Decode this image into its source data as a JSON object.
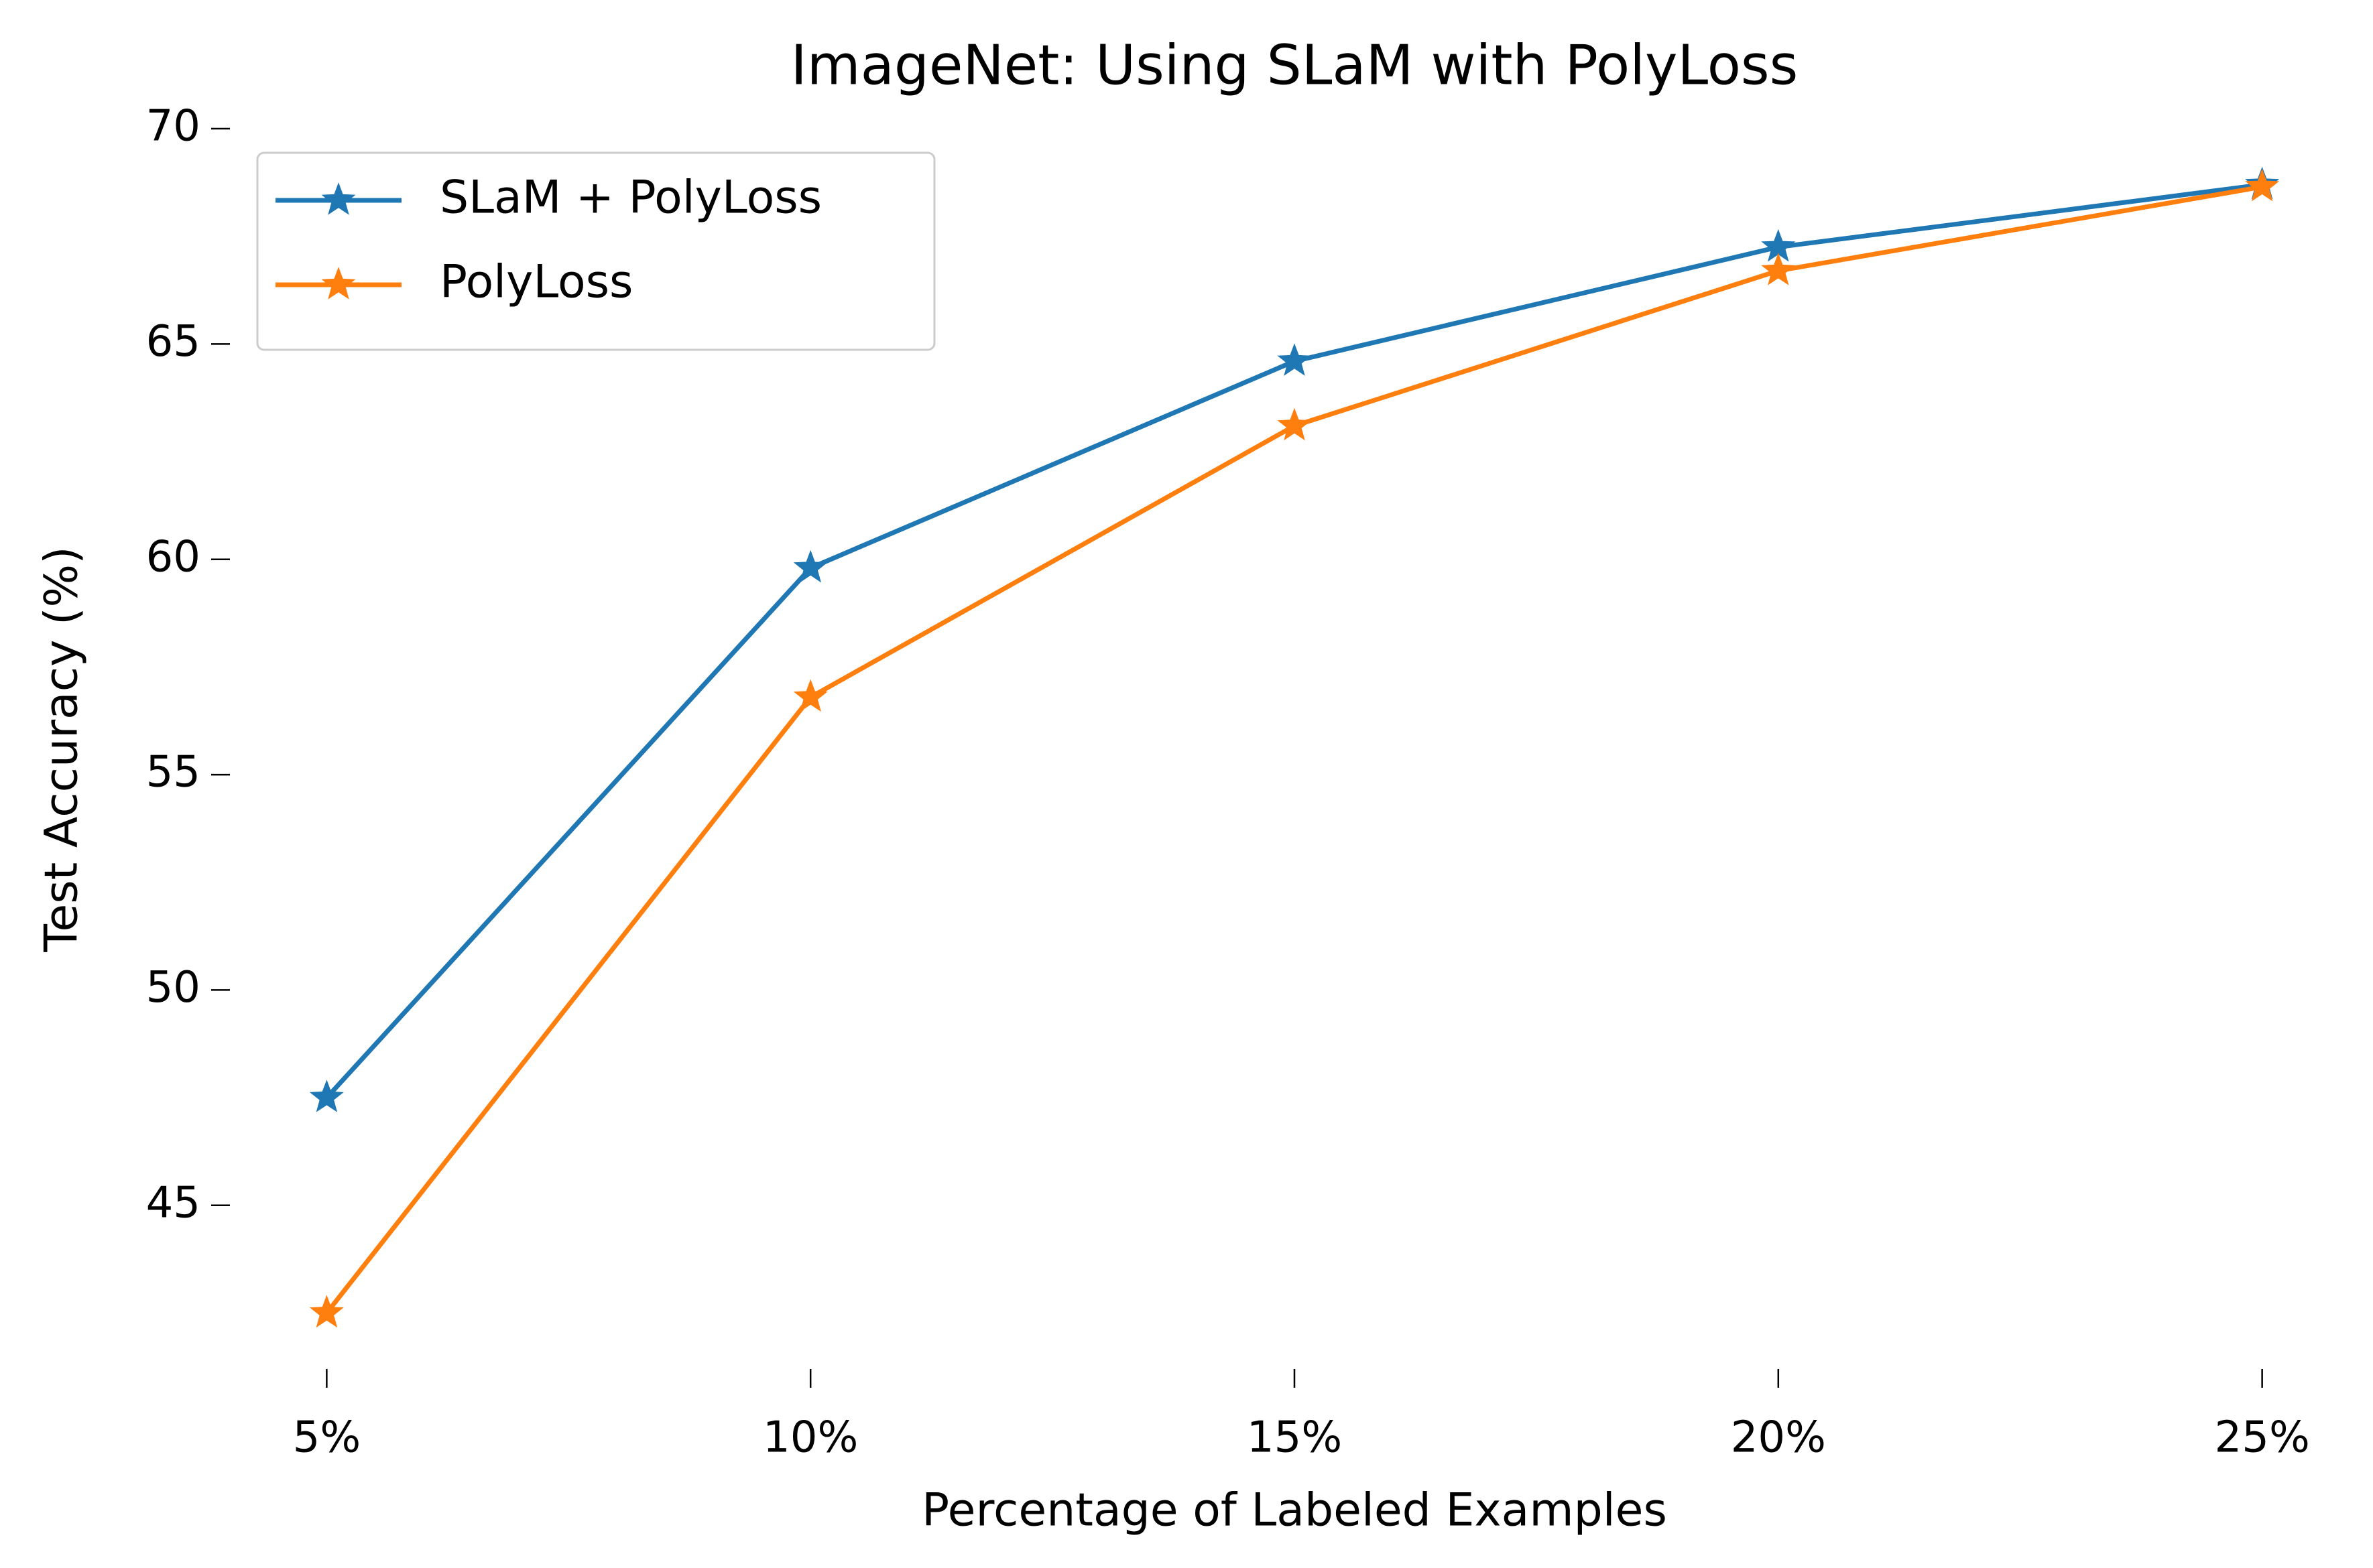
{
  "chart_data": {
    "type": "line",
    "title": "ImageNet: Using SLaM with PolyLoss",
    "x_label": "Percentage of Labeled Examples",
    "y_label": "Test Accuracy (%)",
    "categories": [
      "5%",
      "10%",
      "15%",
      "20%",
      "25%"
    ],
    "series": [
      {
        "name": "SLaM + PolyLoss",
        "color": "#1f77b4",
        "values": [
          47.5,
          59.8,
          64.6,
          67.25,
          68.7
        ]
      },
      {
        "name": "PolyLoss",
        "color": "#ff7f0e",
        "values": [
          42.5,
          56.8,
          63.1,
          66.7,
          68.65
        ]
      }
    ],
    "ylim": [
      41.2,
      70.0
    ],
    "yticks": [
      45,
      50,
      55,
      60,
      65,
      70
    ],
    "grid": false,
    "legend": "upper left"
  }
}
